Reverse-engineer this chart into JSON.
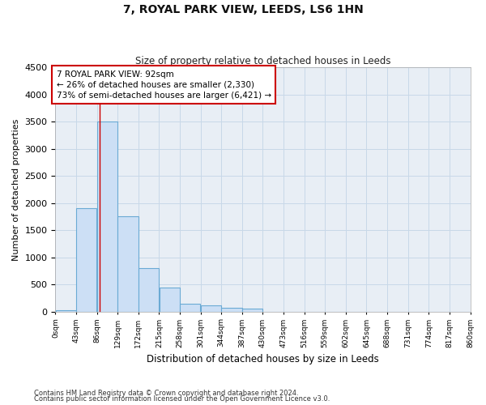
{
  "title": "7, ROYAL PARK VIEW, LEEDS, LS6 1HN",
  "subtitle": "Size of property relative to detached houses in Leeds",
  "xlabel": "Distribution of detached houses by size in Leeds",
  "ylabel": "Number of detached properties",
  "footer_line1": "Contains HM Land Registry data © Crown copyright and database right 2024.",
  "footer_line2": "Contains public sector information licensed under the Open Government Licence v3.0.",
  "bar_values": [
    30,
    1900,
    3500,
    1750,
    800,
    450,
    150,
    110,
    75,
    60,
    0,
    0,
    0,
    0,
    0,
    0,
    0,
    0,
    0,
    0
  ],
  "bin_edges": [
    0,
    43,
    86,
    129,
    172,
    215,
    258,
    301,
    344,
    387,
    430,
    473,
    516,
    559,
    602,
    645,
    688,
    731,
    774,
    817,
    860
  ],
  "xtick_labels": [
    "0sqm",
    "43sqm",
    "86sqm",
    "129sqm",
    "172sqm",
    "215sqm",
    "258sqm",
    "301sqm",
    "344sqm",
    "387sqm",
    "430sqm",
    "473sqm",
    "516sqm",
    "559sqm",
    "602sqm",
    "645sqm",
    "688sqm",
    "731sqm",
    "774sqm",
    "817sqm",
    "860sqm"
  ],
  "ylim": [
    0,
    4500
  ],
  "yticks": [
    0,
    500,
    1000,
    1500,
    2000,
    2500,
    3000,
    3500,
    4000,
    4500
  ],
  "bar_color": "#ccdff5",
  "bar_edge_color": "#6aaad4",
  "grid_color": "#c8d8e8",
  "property_line_x": 92,
  "property_line_color": "#cc0000",
  "annotation_text": "7 ROYAL PARK VIEW: 92sqm\n← 26% of detached houses are smaller (2,330)\n73% of semi-detached houses are larger (6,421) →",
  "annotation_box_color": "#cc0000",
  "fig_background": "#ffffff",
  "plot_background": "#e8eef5"
}
